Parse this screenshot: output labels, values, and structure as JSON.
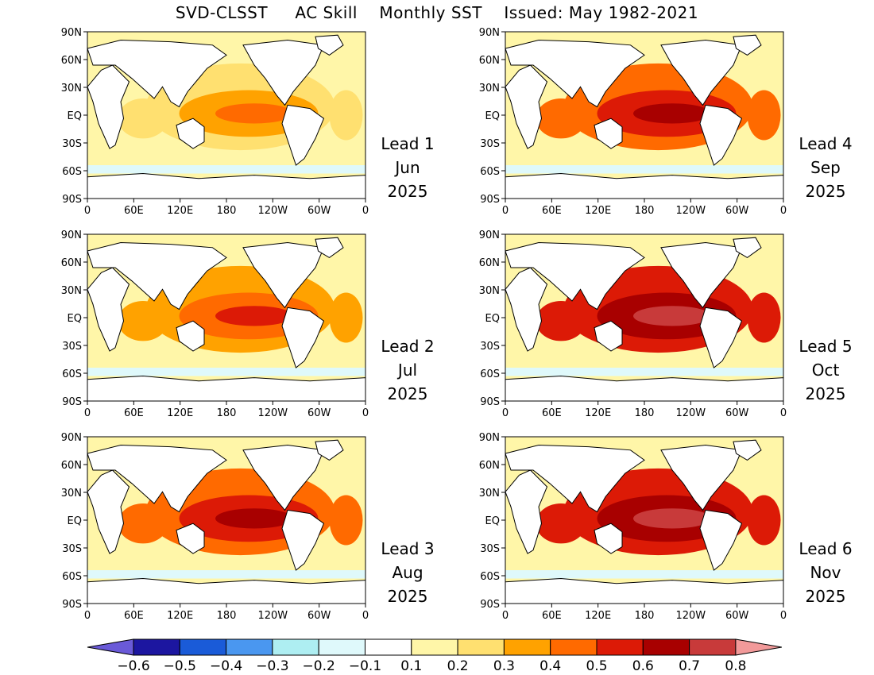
{
  "title": "SVD-CLSST     AC Skill    Monthly SST    Issued: May 1982-2021",
  "lat_ticks": [
    "90N",
    "60N",
    "30N",
    "EQ",
    "30S",
    "60S",
    "90S"
  ],
  "lon_ticks": [
    "0",
    "60E",
    "120E",
    "180",
    "120W",
    "60W",
    "0"
  ],
  "panels": [
    {
      "lead": "Lead 1",
      "month": "Jun",
      "year": "2025",
      "skill": 0
    },
    {
      "lead": "Lead 2",
      "month": "Jul",
      "year": "2025",
      "skill": 1
    },
    {
      "lead": "Lead 3",
      "month": "Aug",
      "year": "2025",
      "skill": 2
    },
    {
      "lead": "Lead 4",
      "month": "Sep",
      "year": "2025",
      "skill": 3
    },
    {
      "lead": "Lead 5",
      "month": "Oct",
      "year": "2025",
      "skill": 4
    },
    {
      "lead": "Lead 6",
      "month": "Nov",
      "year": "2025",
      "skill": 5
    }
  ],
  "colorbar": {
    "labels": [
      "−0.6",
      "−0.5",
      "−0.4",
      "−0.3",
      "−0.2",
      "−0.1",
      "0.1",
      "0.2",
      "0.3",
      "0.4",
      "0.5",
      "0.6",
      "0.7",
      "0.8"
    ],
    "colors": [
      "#1c16a0",
      "#1a5bd8",
      "#4a97f0",
      "#aeeef2",
      "#dff9fb",
      "#ffffff",
      "#fff6a8",
      "#ffe070",
      "#ffa200",
      "#ff6a00",
      "#dc1a06",
      "#a80000",
      "#c83a3a"
    ],
    "low_end_color": "#6a5ad8",
    "high_end_color": "#f29a9a"
  }
}
